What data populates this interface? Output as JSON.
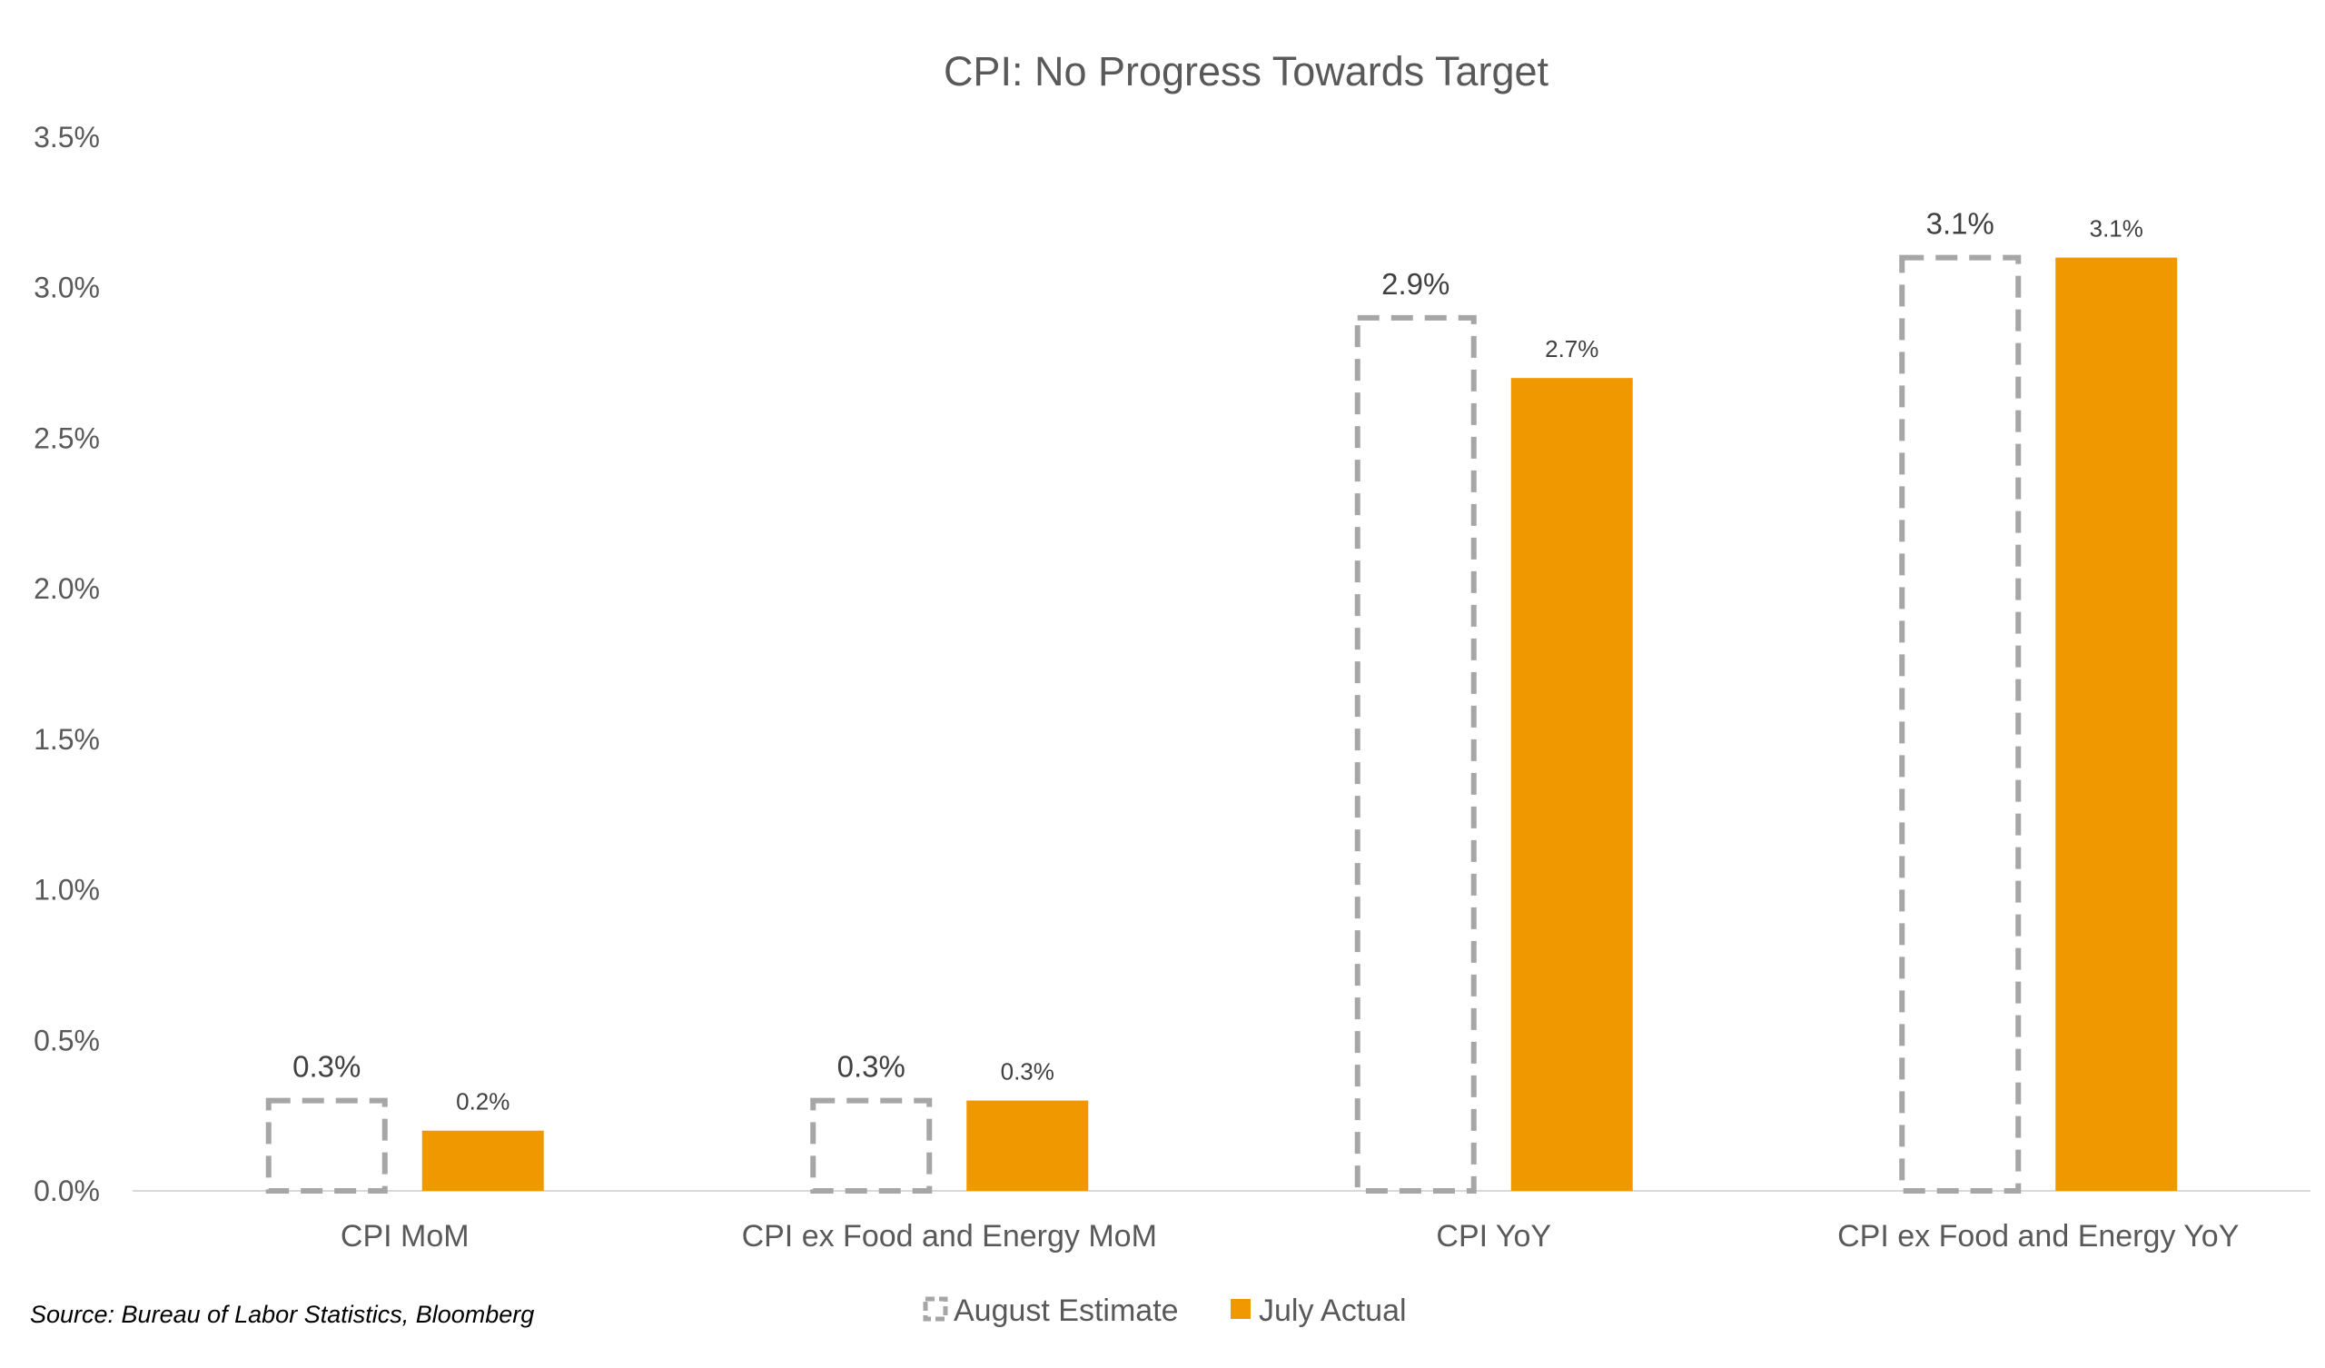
{
  "chart_data": {
    "type": "bar",
    "title": "CPI: No Progress Towards Target",
    "xlabel": "",
    "ylabel": "",
    "categories": [
      "CPI MoM",
      "CPI ex Food and Energy MoM",
      "CPI YoY",
      "CPI ex Food and Energy YoY"
    ],
    "series": [
      {
        "name": "August Estimate",
        "values": [
          0.3,
          0.3,
          2.9,
          3.1
        ],
        "value_labels": [
          "0.3%",
          "0.3%",
          "2.9%",
          "3.1%"
        ],
        "color": "#A6A6A6",
        "style": "dashed-outline"
      },
      {
        "name": "July Actual",
        "values": [
          0.2,
          0.3,
          2.7,
          3.1
        ],
        "value_labels": [
          "0.2%",
          "0.3%",
          "2.7%",
          "3.1%"
        ],
        "color": "#F09800",
        "style": "solid"
      }
    ],
    "ylim": [
      0,
      3.5
    ],
    "y_ticks": [
      "0.0%",
      "0.5%",
      "1.0%",
      "1.5%",
      "2.0%",
      "2.5%",
      "3.0%",
      "3.5%"
    ],
    "grid": false,
    "legend_position": "bottom-center"
  },
  "source": "Source: Bureau of Labor Statistics, Bloomberg",
  "colors": {
    "title": "#595959",
    "axis_text": "#595959",
    "label_text": "#404040",
    "axis_line": "#D9D9D9"
  }
}
